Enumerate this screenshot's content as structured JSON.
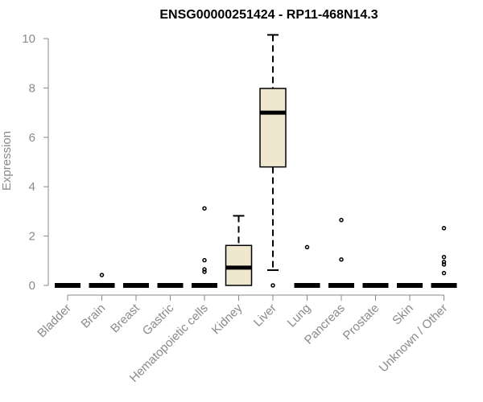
{
  "chart_data": {
    "type": "boxplot",
    "title": "ENSG00000251424 - RP11-468N14.3",
    "xlabel": "",
    "ylabel": "Expression",
    "ylim": [
      0,
      10
    ],
    "yticks": [
      0,
      2,
      4,
      6,
      8,
      10
    ],
    "box_fill": "#efe8cf",
    "categories": [
      "Bladder",
      "Brain",
      "Breast",
      "Gastric",
      "Hematopoietic cells",
      "Kidney",
      "Liver",
      "Lung",
      "Pancreas",
      "Prostate",
      "Skin",
      "Unknown / Other"
    ],
    "boxes": [
      {
        "category": "Bladder",
        "min": 0,
        "q1": 0,
        "median": 0,
        "q3": 0,
        "max": 0,
        "outliers": []
      },
      {
        "category": "Brain",
        "min": 0,
        "q1": 0,
        "median": 0,
        "q3": 0,
        "max": 0,
        "outliers": [
          0.42
        ]
      },
      {
        "category": "Breast",
        "min": 0,
        "q1": 0,
        "median": 0,
        "q3": 0,
        "max": 0,
        "outliers": []
      },
      {
        "category": "Gastric",
        "min": 0,
        "q1": 0,
        "median": 0,
        "q3": 0,
        "max": 0,
        "outliers": []
      },
      {
        "category": "Hematopoietic cells",
        "min": 0,
        "q1": 0,
        "median": 0,
        "q3": 0,
        "max": 0,
        "outliers": [
          3.12,
          1.02,
          0.65,
          0.55
        ]
      },
      {
        "category": "Kidney",
        "min": 0,
        "q1": 0,
        "median": 0.72,
        "q3": 1.62,
        "max": 2.82,
        "outliers": []
      },
      {
        "category": "Liver",
        "min": 0.62,
        "q1": 4.8,
        "median": 7.0,
        "q3": 7.98,
        "max": 10.15,
        "outliers": [
          0
        ]
      },
      {
        "category": "Lung",
        "min": 0,
        "q1": 0,
        "median": 0,
        "q3": 0,
        "max": 0,
        "outliers": [
          1.55
        ]
      },
      {
        "category": "Pancreas",
        "min": 0,
        "q1": 0,
        "median": 0,
        "q3": 0,
        "max": 0,
        "outliers": [
          2.65,
          1.05
        ]
      },
      {
        "category": "Prostate",
        "min": 0,
        "q1": 0,
        "median": 0,
        "q3": 0,
        "max": 0,
        "outliers": []
      },
      {
        "category": "Skin",
        "min": 0,
        "q1": 0,
        "median": 0,
        "q3": 0,
        "max": 0,
        "outliers": []
      },
      {
        "category": "Unknown / Other",
        "min": 0,
        "q1": 0,
        "median": 0,
        "q3": 0,
        "max": 0,
        "outliers": [
          2.32,
          1.15,
          0.95,
          0.85,
          0.5
        ]
      }
    ]
  }
}
